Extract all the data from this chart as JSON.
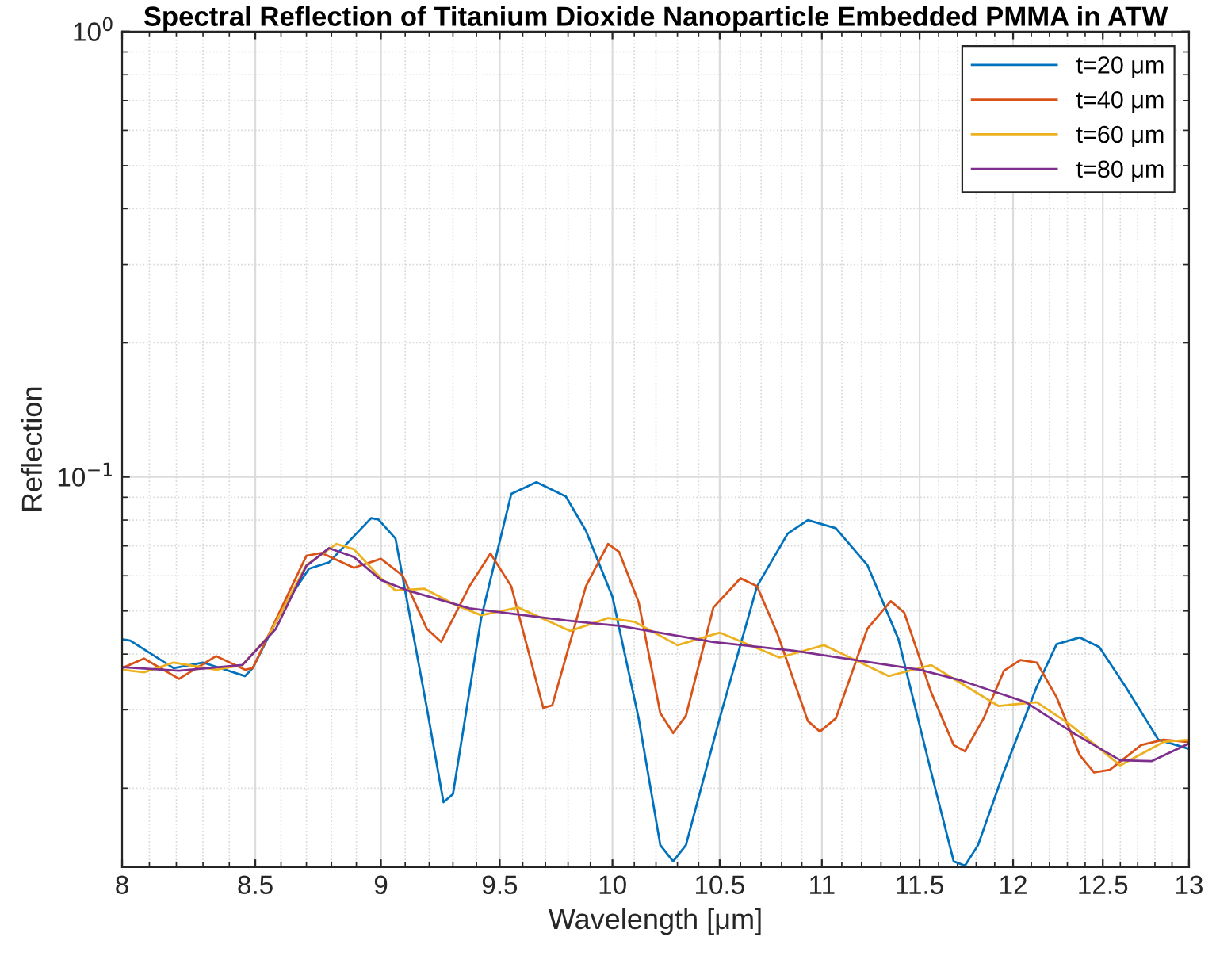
{
  "chart_data": {
    "type": "line",
    "title": "Spectral Reflection of Titanium Dioxide Nanoparticle Embedded PMMA in ATW",
    "xlabel": "Wavelength [μm]",
    "ylabel": "Reflection",
    "log": "xy",
    "grid": true,
    "legend": "top right",
    "line_style": "solid",
    "marker": "none",
    "xlim": [
      8,
      13
    ],
    "xticks": [
      8,
      8.5,
      9,
      9.5,
      10,
      10.5,
      11,
      11.5,
      12,
      12.5,
      13
    ],
    "ylim": [
      0.0133,
      1
    ],
    "yticks": [
      {
        "value": 0.1,
        "label": "10$^{−1}$"
      },
      {
        "value": 1,
        "label": "10$^{0}$"
      }
    ],
    "series": [
      {
        "name": "t=20 μm",
        "color": "#0072bd",
        "x": [
          8.0,
          8.03,
          8.19,
          8.3,
          8.46,
          8.49,
          8.61,
          8.71,
          8.79,
          8.96,
          8.99,
          9.06,
          9.19,
          9.26,
          9.3,
          9.42,
          9.55,
          9.66,
          9.79,
          9.88,
          10.0,
          10.12,
          10.22,
          10.28,
          10.34,
          10.5,
          10.68,
          10.83,
          10.93,
          11.07,
          11.23,
          11.39,
          11.56,
          11.68,
          11.74,
          11.81,
          11.95,
          12.13,
          12.24,
          12.37,
          12.48,
          12.63,
          12.82,
          13.0
        ],
        "values": [
          0.0432,
          0.0429,
          0.0372,
          0.0383,
          0.0357,
          0.0372,
          0.0511,
          0.0622,
          0.0643,
          0.0808,
          0.0802,
          0.0727,
          0.0303,
          0.0186,
          0.0194,
          0.0482,
          0.0916,
          0.0973,
          0.0904,
          0.0757,
          0.0538,
          0.0287,
          0.0149,
          0.0137,
          0.0149,
          0.0287,
          0.0568,
          0.0746,
          0.08,
          0.0767,
          0.0634,
          0.0432,
          0.0218,
          0.0137,
          0.0134,
          0.0149,
          0.0218,
          0.0338,
          0.0421,
          0.0436,
          0.0415,
          0.0338,
          0.0257,
          0.0245
        ]
      },
      {
        "name": "t=40 μm",
        "color": "#d95319",
        "x": [
          8.0,
          8.08,
          8.21,
          8.35,
          8.46,
          8.49,
          8.7,
          8.76,
          8.89,
          9.0,
          9.09,
          9.19,
          9.25,
          9.37,
          9.46,
          9.55,
          9.69,
          9.73,
          9.88,
          9.98,
          10.03,
          10.12,
          10.22,
          10.28,
          10.34,
          10.47,
          10.6,
          10.68,
          10.78,
          10.93,
          10.99,
          11.07,
          11.23,
          11.35,
          11.42,
          11.56,
          11.68,
          11.74,
          11.84,
          11.95,
          12.04,
          12.13,
          12.24,
          12.37,
          12.45,
          12.54,
          12.72,
          12.85,
          13.0
        ],
        "values": [
          0.0372,
          0.0391,
          0.0352,
          0.0396,
          0.0369,
          0.0372,
          0.0665,
          0.0675,
          0.0625,
          0.0655,
          0.06,
          0.0456,
          0.0426,
          0.0568,
          0.0673,
          0.0568,
          0.0303,
          0.0307,
          0.0568,
          0.0707,
          0.0679,
          0.0523,
          0.0295,
          0.0266,
          0.0291,
          0.0509,
          0.0592,
          0.0568,
          0.0444,
          0.0283,
          0.0268,
          0.0287,
          0.0456,
          0.0526,
          0.0496,
          0.0329,
          0.025,
          0.0242,
          0.0287,
          0.0367,
          0.0388,
          0.0383,
          0.032,
          0.0237,
          0.0217,
          0.022,
          0.025,
          0.0257,
          0.0254
        ]
      },
      {
        "name": "t=60 μm",
        "color": "#edb120",
        "x": [
          8.0,
          8.08,
          8.19,
          8.35,
          8.45,
          8.55,
          8.7,
          8.82,
          8.89,
          9.0,
          9.06,
          9.18,
          9.31,
          9.42,
          9.58,
          9.81,
          9.98,
          10.1,
          10.3,
          10.5,
          10.79,
          11.01,
          11.34,
          11.56,
          11.92,
          12.13,
          12.31,
          12.6,
          12.85,
          13.0
        ],
        "values": [
          0.0369,
          0.0364,
          0.0383,
          0.0369,
          0.0378,
          0.0438,
          0.0634,
          0.0707,
          0.0688,
          0.0592,
          0.0556,
          0.0561,
          0.0516,
          0.0489,
          0.0509,
          0.0451,
          0.0482,
          0.0473,
          0.0419,
          0.0447,
          0.0393,
          0.0419,
          0.0357,
          0.0378,
          0.0306,
          0.0312,
          0.0279,
          0.0225,
          0.0254,
          0.0257
        ]
      },
      {
        "name": "t=80 μm",
        "color": "#7e2f8e",
        "x": [
          8.0,
          8.21,
          8.45,
          8.58,
          8.7,
          8.79,
          8.89,
          9.0,
          9.11,
          9.37,
          9.55,
          9.79,
          10.03,
          10.47,
          10.86,
          11.5,
          11.72,
          12.07,
          12.34,
          12.6,
          12.78,
          13.0
        ],
        "values": [
          0.0374,
          0.0367,
          0.0378,
          0.0456,
          0.0631,
          0.0692,
          0.0661,
          0.0587,
          0.0556,
          0.0507,
          0.0493,
          0.0476,
          0.0463,
          0.0426,
          0.0407,
          0.0369,
          0.0349,
          0.0312,
          0.0265,
          0.0231,
          0.023,
          0.0252
        ]
      }
    ]
  }
}
